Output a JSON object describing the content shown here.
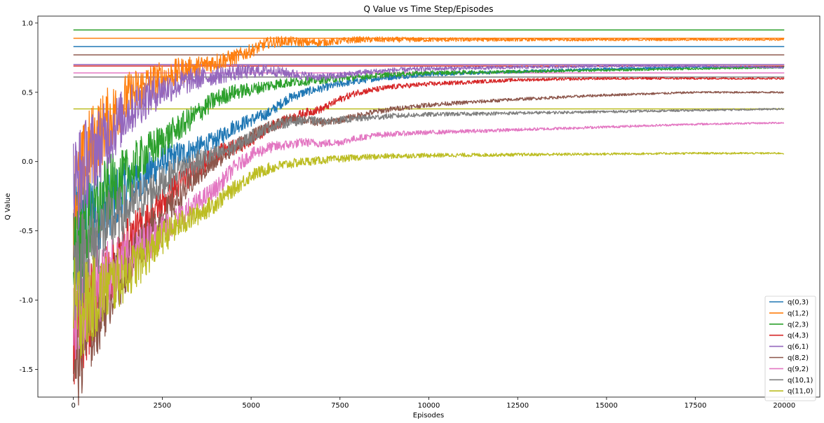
{
  "chart_data": {
    "type": "line",
    "title": "Q Value vs Time Step/Episodes",
    "xlabel": "Episodes",
    "ylabel": "Q Value",
    "xlim": [
      -1000,
      21000
    ],
    "ylim": [
      -1.7,
      1.05
    ],
    "xticks": [
      0,
      2500,
      5000,
      7500,
      10000,
      12500,
      15000,
      17500,
      20000
    ],
    "xtick_labels": [
      "0",
      "2500",
      "5000",
      "7500",
      "10000",
      "12500",
      "15000",
      "17500",
      "20000"
    ],
    "yticks": [
      -1.5,
      -1.0,
      -0.5,
      0.0,
      0.5,
      1.0
    ],
    "ytick_labels": [
      "-1.5",
      "-1.0",
      "-0.5",
      "0.0",
      "0.5",
      "1.0"
    ],
    "grid": false,
    "legend_position": "lower-right",
    "series": [
      {
        "name": "q(0,3)",
        "color": "#1f77b4",
        "reference": 0.83,
        "x": [
          0,
          500,
          1000,
          1500,
          2000,
          2500,
          3000,
          3500,
          4000,
          4500,
          5000,
          5500,
          6000,
          6500,
          7000,
          7500,
          8000,
          8500,
          9000,
          10000,
          12500,
          15000,
          17500,
          20000
        ],
        "y": [
          -0.5,
          -0.4,
          -0.3,
          -0.2,
          -0.1,
          0.0,
          0.05,
          0.1,
          0.15,
          0.25,
          0.3,
          0.35,
          0.45,
          0.5,
          0.53,
          0.56,
          0.58,
          0.6,
          0.61,
          0.63,
          0.65,
          0.67,
          0.68,
          0.68
        ]
      },
      {
        "name": "q(1,2)",
        "color": "#ff7f0e",
        "reference": 0.89,
        "x": [
          0,
          500,
          1000,
          1500,
          2000,
          2500,
          3000,
          3500,
          4000,
          4500,
          5000,
          5500,
          6000,
          6500,
          7000,
          7500,
          8000,
          8500,
          9000,
          10000,
          12500,
          15000,
          17500,
          20000
        ],
        "y": [
          -0.3,
          0.1,
          0.3,
          0.45,
          0.55,
          0.6,
          0.65,
          0.68,
          0.72,
          0.75,
          0.8,
          0.86,
          0.87,
          0.86,
          0.86,
          0.87,
          0.88,
          0.88,
          0.88,
          0.88,
          0.88,
          0.88,
          0.88,
          0.88
        ]
      },
      {
        "name": "q(2,3)",
        "color": "#2ca02c",
        "reference": 0.95,
        "x": [
          0,
          500,
          1000,
          1500,
          2000,
          2500,
          3000,
          3500,
          4000,
          4500,
          5000,
          5500,
          6000,
          6500,
          7000,
          7500,
          8000,
          8500,
          9000,
          10000,
          12500,
          15000,
          17500,
          20000
        ],
        "y": [
          -0.6,
          -0.4,
          -0.2,
          -0.1,
          0.05,
          0.15,
          0.25,
          0.35,
          0.45,
          0.5,
          0.52,
          0.55,
          0.57,
          0.58,
          0.59,
          0.6,
          0.61,
          0.62,
          0.63,
          0.64,
          0.65,
          0.66,
          0.67,
          0.68
        ]
      },
      {
        "name": "q(4,3)",
        "color": "#d62728",
        "reference": 0.69,
        "x": [
          0,
          500,
          1000,
          1500,
          2000,
          2500,
          3000,
          3500,
          4000,
          4500,
          5000,
          5500,
          6000,
          6500,
          7000,
          7500,
          8000,
          8500,
          9000,
          10000,
          12500,
          15000,
          17500,
          20000
        ],
        "y": [
          -1.3,
          -1.05,
          -0.8,
          -0.6,
          -0.45,
          -0.3,
          -0.15,
          -0.05,
          0.05,
          0.1,
          0.15,
          0.25,
          0.3,
          0.35,
          0.38,
          0.45,
          0.5,
          0.52,
          0.54,
          0.56,
          0.59,
          0.6,
          0.6,
          0.6
        ]
      },
      {
        "name": "q(6,1)",
        "color": "#9467bd",
        "reference": 0.7,
        "x": [
          0,
          500,
          1000,
          1500,
          2000,
          2500,
          3000,
          3500,
          4000,
          4500,
          5000,
          5500,
          6000,
          6500,
          7000,
          7500,
          8000,
          8500,
          9000,
          10000,
          12500,
          15000,
          17500,
          20000
        ],
        "y": [
          -0.2,
          0.05,
          0.2,
          0.35,
          0.45,
          0.52,
          0.56,
          0.6,
          0.62,
          0.64,
          0.65,
          0.66,
          0.64,
          0.62,
          0.61,
          0.62,
          0.64,
          0.65,
          0.66,
          0.67,
          0.68,
          0.69,
          0.69,
          0.68
        ]
      },
      {
        "name": "q(8,2)",
        "color": "#8c564b",
        "reference": 0.77,
        "x": [
          0,
          500,
          1000,
          1500,
          2000,
          2500,
          3000,
          3500,
          4000,
          4500,
          5000,
          5500,
          6000,
          6500,
          7000,
          7500,
          8000,
          8500,
          9000,
          10000,
          12500,
          15000,
          17500,
          20000
        ],
        "y": [
          -1.45,
          -1.2,
          -0.95,
          -0.75,
          -0.55,
          -0.4,
          -0.25,
          -0.1,
          0.0,
          0.1,
          0.18,
          0.25,
          0.3,
          0.3,
          0.28,
          0.3,
          0.33,
          0.36,
          0.38,
          0.41,
          0.45,
          0.48,
          0.5,
          0.5
        ]
      },
      {
        "name": "q(9,2)",
        "color": "#e377c2",
        "reference": 0.64,
        "x": [
          0,
          500,
          1000,
          1500,
          2000,
          2500,
          3000,
          3500,
          4000,
          4500,
          5000,
          5500,
          6000,
          6500,
          7000,
          7500,
          8000,
          8500,
          9000,
          10000,
          12500,
          15000,
          17500,
          20000
        ],
        "y": [
          -1.1,
          -0.95,
          -0.8,
          -0.7,
          -0.6,
          -0.5,
          -0.4,
          -0.3,
          -0.2,
          -0.05,
          0.05,
          0.1,
          0.12,
          0.14,
          0.13,
          0.14,
          0.17,
          0.19,
          0.2,
          0.21,
          0.23,
          0.25,
          0.27,
          0.28
        ]
      },
      {
        "name": "q(10,1)",
        "color": "#7f7f7f",
        "reference": 0.61,
        "x": [
          0,
          500,
          1000,
          1500,
          2000,
          2500,
          3000,
          3500,
          4000,
          4500,
          5000,
          5500,
          6000,
          6500,
          7000,
          7500,
          8000,
          8500,
          9000,
          10000,
          12500,
          15000,
          17500,
          20000
        ],
        "y": [
          -0.8,
          -0.6,
          -0.45,
          -0.35,
          -0.25,
          -0.15,
          -0.05,
          0.0,
          0.05,
          0.1,
          0.18,
          0.25,
          0.28,
          0.3,
          0.29,
          0.3,
          0.31,
          0.32,
          0.33,
          0.34,
          0.35,
          0.36,
          0.37,
          0.38
        ]
      },
      {
        "name": "q(11,0)",
        "color": "#bcbd22",
        "reference": 0.38,
        "x": [
          0,
          500,
          1000,
          1500,
          2000,
          2500,
          3000,
          3500,
          4000,
          4500,
          5000,
          5500,
          6000,
          6500,
          7000,
          7500,
          8000,
          8500,
          9000,
          10000,
          12500,
          15000,
          17500,
          20000
        ],
        "y": [
          -1.1,
          -1.0,
          -0.9,
          -0.8,
          -0.7,
          -0.55,
          -0.45,
          -0.38,
          -0.3,
          -0.2,
          -0.1,
          -0.05,
          -0.02,
          0.0,
          0.01,
          0.02,
          0.03,
          0.035,
          0.04,
          0.045,
          0.05,
          0.055,
          0.06,
          0.06
        ]
      }
    ]
  }
}
